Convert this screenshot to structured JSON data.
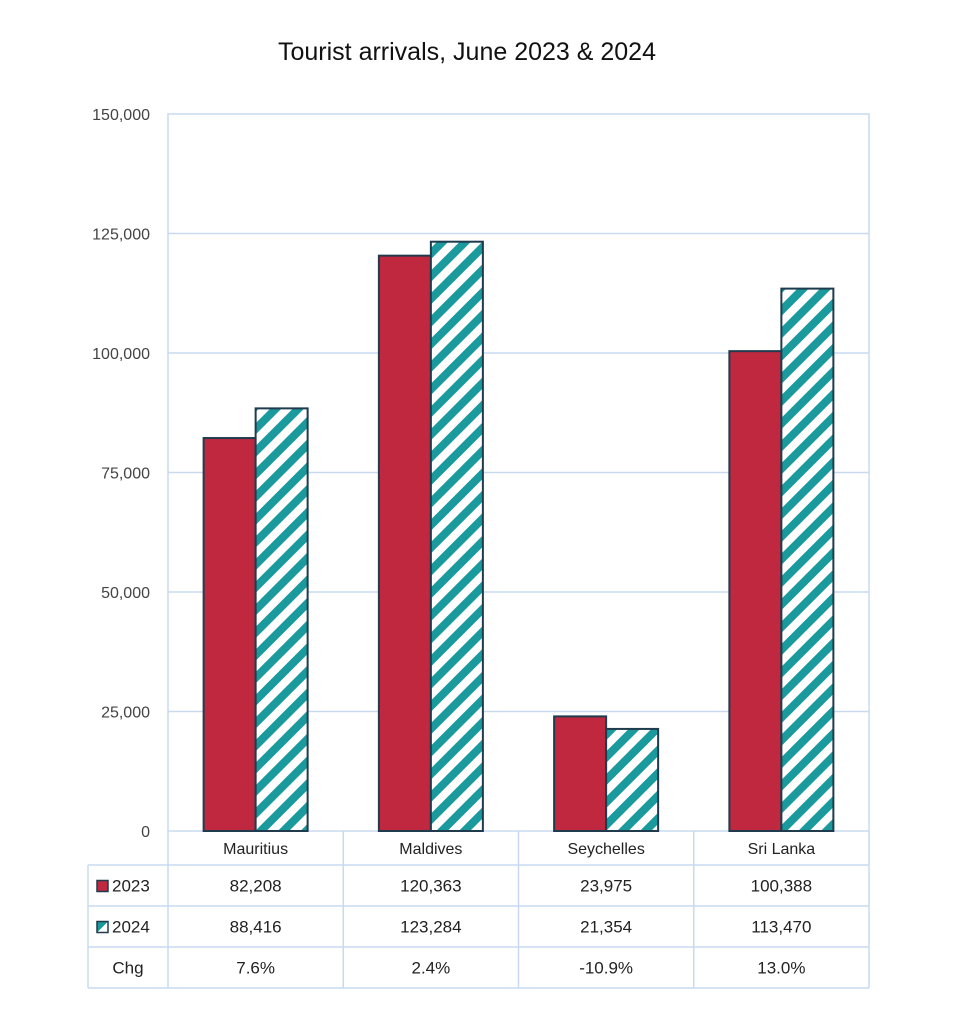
{
  "chart_data": {
    "type": "bar",
    "title": "Tourist arrivals, June 2023 & 2024",
    "categories": [
      "Mauritius",
      "Maldives",
      "Seychelles",
      "Sri Lanka"
    ],
    "series": [
      {
        "name": "2023",
        "values": [
          82208,
          120363,
          23975,
          100388
        ],
        "color": "#c0283f",
        "pattern": "solid"
      },
      {
        "name": "2024",
        "values": [
          88416,
          123284,
          21354,
          113470
        ],
        "color": "#1a9a9c",
        "pattern": "diagonal-stripes"
      }
    ],
    "yticks": [
      "0",
      "25,000",
      "50,000",
      "75,000",
      "100,000",
      "125,000",
      "150,000"
    ],
    "ylim": [
      0,
      150000
    ],
    "grid": true,
    "table": {
      "rows": [
        {
          "label": "2023",
          "cells": [
            "82,208",
            "120,363",
            "23,975",
            "100,388"
          ]
        },
        {
          "label": "2024",
          "cells": [
            "88,416",
            "123,284",
            "21,354",
            "113,470"
          ]
        },
        {
          "label": "Chg",
          "cells": [
            "7.6%",
            "2.4%",
            "-10.9%",
            "13.0%"
          ]
        }
      ]
    },
    "colors": {
      "grid": "#c9daf0",
      "outline": "#1f3b4d"
    }
  }
}
